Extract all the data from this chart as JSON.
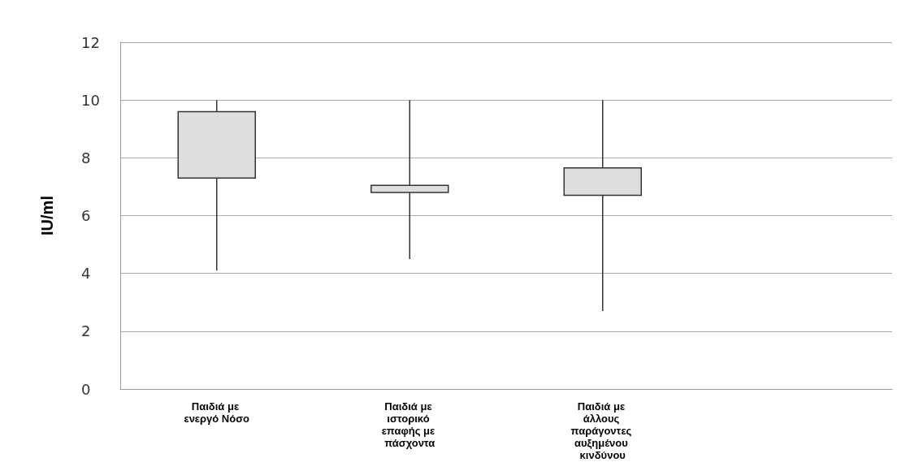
{
  "chart_data": {
    "type": "box",
    "ylabel": "IU/ml",
    "categories": [
      "Παιδιά με ενεργό Νόσο",
      "Παιδιά με ιστορικό επαφής με πάσχοντα",
      "Παιδιά με άλλους παράγοντες αυξημένου κινδύνου",
      null
    ],
    "boxes": [
      {
        "low": 4.1,
        "q1": 7.3,
        "q3": 9.6,
        "high": 10
      },
      {
        "low": 4.5,
        "q1": 6.8,
        "q3": 7.05,
        "high": 10
      },
      {
        "low": 2.7,
        "q1": 6.7,
        "q3": 7.65,
        "high": 10
      },
      null
    ],
    "color": "#dedede",
    "ylim": [
      0,
      12
    ],
    "yticks": [
      0,
      2,
      4,
      6,
      8,
      10,
      12
    ],
    "grid": "y"
  }
}
